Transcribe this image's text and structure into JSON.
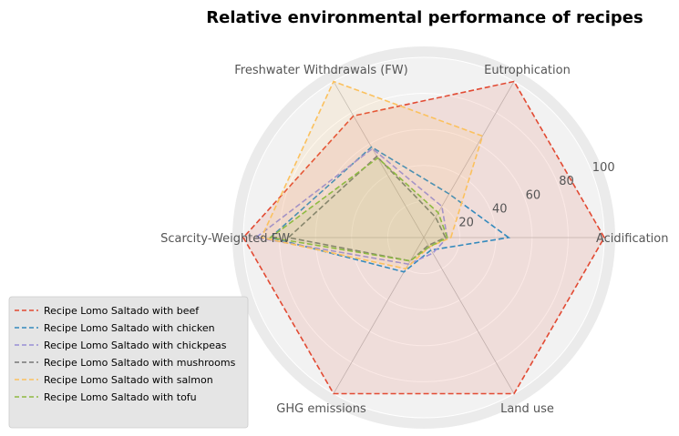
{
  "chart_data": {
    "type": "radar",
    "title": "Relative environmental performance of recipes",
    "axes": [
      "Acidification",
      "Eutrophication",
      "Freshwater Withdrawals (FW)",
      "Scarcity-Weighted FW",
      "GHG emissions",
      "Land use"
    ],
    "rlim": [
      0,
      100
    ],
    "rticks": [
      20,
      40,
      60,
      80,
      100
    ],
    "grid": true,
    "legend_position": "lower-left",
    "series": [
      {
        "name": "Recipe Lomo Saltado with beef",
        "color": "#E24A33",
        "filled": true,
        "values": [
          100,
          100,
          78,
          100,
          100,
          100
        ]
      },
      {
        "name": "Recipe Lomo Saltado with chicken",
        "color": "#348ABD",
        "filled": false,
        "values": [
          47,
          28,
          58,
          85,
          22,
          8
        ]
      },
      {
        "name": "Recipe Lomo Saltado with chickpeas",
        "color": "#988ED5",
        "filled": false,
        "values": [
          13,
          20,
          57,
          93,
          17,
          10
        ]
      },
      {
        "name": "Recipe Lomo Saltado with mushrooms",
        "color": "#777777",
        "filled": false,
        "values": [
          12,
          13,
          52,
          75,
          15,
          5
        ]
      },
      {
        "name": "Recipe Lomo Saltado with salmon",
        "color": "#FBC15E",
        "filled": true,
        "values": [
          15,
          65,
          100,
          90,
          20,
          6
        ]
      },
      {
        "name": "Recipe Lomo Saltado with tofu",
        "color": "#8EBA42",
        "filled": true,
        "values": [
          13,
          16,
          51,
          85,
          15,
          6
        ]
      }
    ]
  }
}
